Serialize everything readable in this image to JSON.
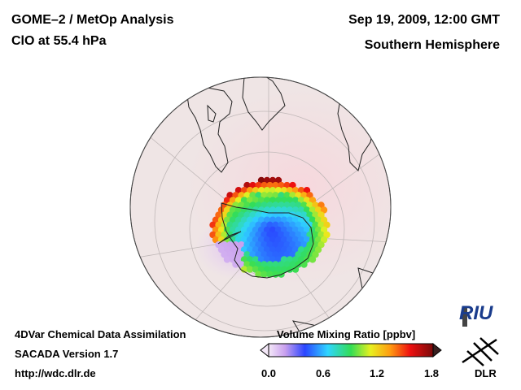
{
  "header": {
    "title": "GOME–2 / MetOp Analysis",
    "species": "ClO at 55.4 hPa",
    "datetime": "Sep 19, 2009, 12:00 GMT",
    "region": "Southern Hemisphere"
  },
  "footer": {
    "line1": "4DVar Chemical Data Assimilation",
    "line2": "SACADA Version 1.7",
    "line3": "http://wdc.dlr.de"
  },
  "colorbar": {
    "title": "Volume Mixing Ratio [ppbv]",
    "ticks": [
      "0.0",
      "0.6",
      "1.2",
      "1.8"
    ],
    "range": [
      0.0,
      1.8
    ]
  },
  "logos": {
    "riu": "RIU",
    "dlr": "DLR"
  },
  "colors": {
    "globe_bg": "#f1e6e6",
    "coast": "#222222",
    "grid": "#bbbbbb"
  }
}
